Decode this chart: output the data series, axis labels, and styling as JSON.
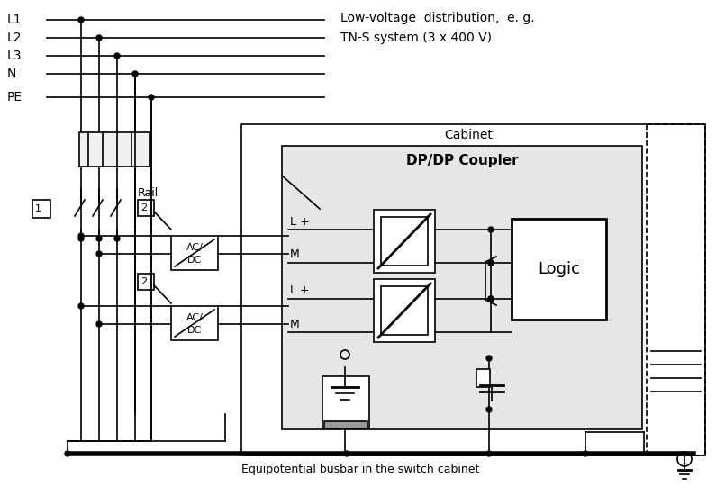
{
  "bg_color": "#ffffff",
  "line_color": "#000000",
  "texts": {
    "low_voltage_line1": "Low-voltage  distribution,  e. g.",
    "low_voltage_line2": "TN-S system (3 x 400 V)",
    "cabinet": "Cabinet",
    "dp_coupler": "DP/DP Coupler",
    "rail": "Rail",
    "logic": "Logic",
    "equip_busbar": "Equipotential busbar in the switch cabinet"
  },
  "bus_labels": [
    "L1",
    "L2",
    "L3",
    "N",
    "PE"
  ],
  "bus_y_img": [
    22,
    42,
    62,
    82,
    108
  ],
  "vx": [
    90,
    110,
    130,
    150,
    168
  ]
}
